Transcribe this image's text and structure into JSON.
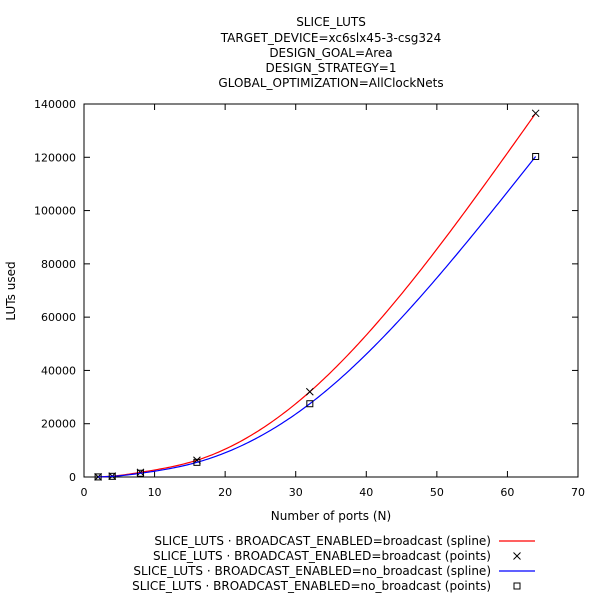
{
  "chart_data": {
    "type": "line",
    "title_lines": [
      "SLICE_LUTS",
      "TARGET_DEVICE=xc6slx45-3-csg324",
      "DESIGN_GOAL=Area",
      "DESIGN_STRATEGY=1",
      "GLOBAL_OPTIMIZATION=AllClockNets"
    ],
    "xlabel": "Number of ports (N)",
    "ylabel": "LUTs used",
    "xlim": [
      0,
      70
    ],
    "ylim": [
      0,
      140000
    ],
    "xticks": [
      0,
      10,
      20,
      30,
      40,
      50,
      60,
      70
    ],
    "yticks": [
      0,
      20000,
      40000,
      60000,
      80000,
      100000,
      120000,
      140000
    ],
    "grid": false,
    "legend_position": "bottom",
    "series": [
      {
        "name": "SLICE_LUTS ·  BROADCAST_ENABLED=broadcast (spline)",
        "style": "line",
        "color": "#ff0000",
        "x": [
          2,
          4,
          8,
          16,
          32,
          64
        ],
        "y": [
          40,
          330,
          1750,
          6300,
          32000,
          136500
        ]
      },
      {
        "name": "SLICE_LUTS ·  BROADCAST_ENABLED=broadcast (points)",
        "style": "points",
        "marker": "x",
        "color": "#000000",
        "x": [
          2,
          4,
          8,
          16,
          32,
          64
        ],
        "y": [
          40,
          330,
          1750,
          6300,
          32000,
          136500
        ]
      },
      {
        "name": "SLICE_LUTS ·  BROADCAST_ENABLED=no_broadcast (spline)",
        "style": "line",
        "color": "#0000ff",
        "x": [
          2,
          4,
          8,
          16,
          32,
          64
        ],
        "y": [
          30,
          250,
          1400,
          5500,
          27500,
          120300
        ]
      },
      {
        "name": "SLICE_LUTS ·  BROADCAST_ENABLED=no_broadcast (points)",
        "style": "points",
        "marker": "square",
        "color": "#000000",
        "x": [
          2,
          4,
          8,
          16,
          32,
          64
        ],
        "y": [
          30,
          250,
          1400,
          5500,
          27500,
          120300
        ]
      }
    ]
  }
}
